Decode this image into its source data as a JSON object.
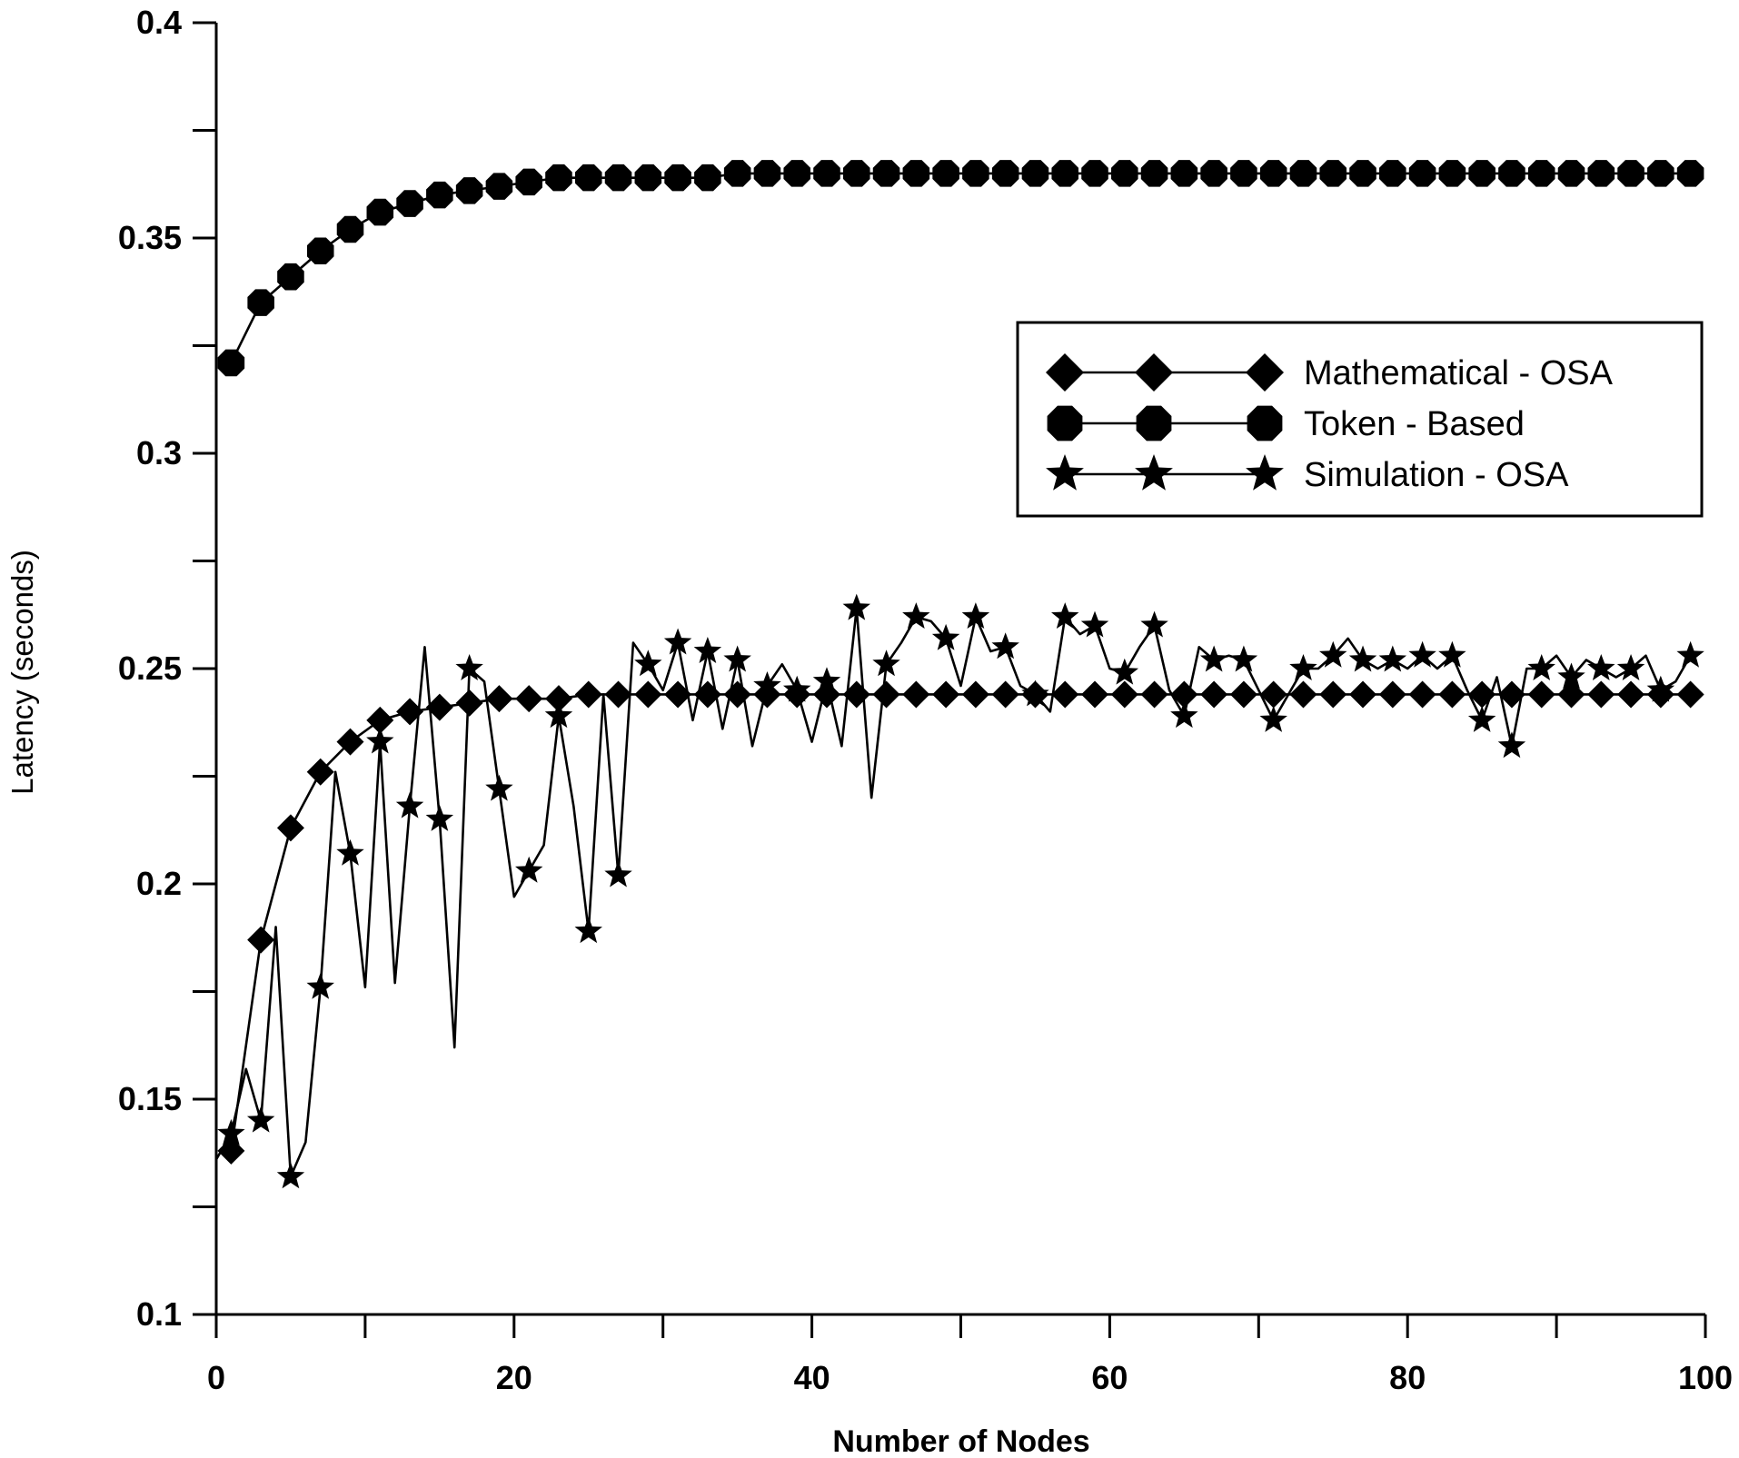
{
  "chart_data": {
    "type": "line",
    "title": "",
    "xlabel": "Number of Nodes",
    "ylabel": "Latency (seconds)",
    "xlim": [
      0,
      100
    ],
    "ylim": [
      0.1,
      0.4
    ],
    "x_ticks": [
      0,
      20,
      40,
      60,
      80,
      100
    ],
    "x_tick_labels": [
      "0",
      "20",
      "40",
      "60",
      "80",
      "100"
    ],
    "y_ticks": [
      0.1,
      0.15,
      0.2,
      0.25,
      0.3,
      0.35,
      0.4
    ],
    "y_tick_labels": [
      "0.1",
      "0.15",
      "0.2",
      "0.25",
      "0.3",
      "0.35",
      "0.4"
    ],
    "legend_position": "upper-right",
    "series": [
      {
        "name": "Mathematical - OSA",
        "marker": "diamond",
        "x": [
          1,
          3,
          5,
          7,
          9,
          11,
          13,
          15,
          17,
          19,
          21,
          23,
          25,
          27,
          29,
          31,
          33,
          35,
          37,
          39,
          41,
          43,
          45,
          47,
          49,
          51,
          53,
          55,
          57,
          59,
          61,
          63,
          65,
          67,
          69,
          71,
          73,
          75,
          77,
          79,
          81,
          83,
          85,
          87,
          89,
          91,
          93,
          95,
          97,
          99
        ],
        "y": [
          0.138,
          0.187,
          0.213,
          0.226,
          0.233,
          0.238,
          0.24,
          0.241,
          0.242,
          0.243,
          0.243,
          0.243,
          0.244,
          0.244,
          0.244,
          0.244,
          0.244,
          0.244,
          0.244,
          0.244,
          0.244,
          0.244,
          0.244,
          0.244,
          0.244,
          0.244,
          0.244,
          0.244,
          0.244,
          0.244,
          0.244,
          0.244,
          0.244,
          0.244,
          0.244,
          0.244,
          0.244,
          0.244,
          0.244,
          0.244,
          0.244,
          0.244,
          0.244,
          0.244,
          0.244,
          0.244,
          0.244,
          0.244,
          0.244,
          0.244
        ]
      },
      {
        "name": "Token - Based",
        "marker": "octagon",
        "x": [
          1,
          3,
          5,
          7,
          9,
          11,
          13,
          15,
          17,
          19,
          21,
          23,
          25,
          27,
          29,
          31,
          33,
          35,
          37,
          39,
          41,
          43,
          45,
          47,
          49,
          51,
          53,
          55,
          57,
          59,
          61,
          63,
          65,
          67,
          69,
          71,
          73,
          75,
          77,
          79,
          81,
          83,
          85,
          87,
          89,
          91,
          93,
          95,
          97,
          99
        ],
        "y": [
          0.321,
          0.335,
          0.341,
          0.347,
          0.352,
          0.356,
          0.358,
          0.36,
          0.361,
          0.362,
          0.363,
          0.364,
          0.364,
          0.364,
          0.364,
          0.364,
          0.364,
          0.365,
          0.365,
          0.365,
          0.365,
          0.365,
          0.365,
          0.365,
          0.365,
          0.365,
          0.365,
          0.365,
          0.365,
          0.365,
          0.365,
          0.365,
          0.365,
          0.365,
          0.365,
          0.365,
          0.365,
          0.365,
          0.365,
          0.365,
          0.365,
          0.365,
          0.365,
          0.365,
          0.365,
          0.365,
          0.365,
          0.365,
          0.365,
          0.365
        ]
      },
      {
        "name": "Simulation - OSA",
        "marker": "star",
        "x": [
          0,
          1,
          2,
          3,
          4,
          5,
          6,
          7,
          8,
          9,
          10,
          11,
          12,
          13,
          14,
          15,
          16,
          17,
          18,
          19,
          20,
          21,
          22,
          23,
          24,
          25,
          26,
          27,
          28,
          29,
          30,
          31,
          32,
          33,
          34,
          35,
          36,
          37,
          38,
          39,
          40,
          41,
          42,
          43,
          44,
          45,
          46,
          47,
          48,
          49,
          50,
          51,
          52,
          53,
          54,
          55,
          56,
          57,
          58,
          59,
          60,
          61,
          62,
          63,
          64,
          65,
          66,
          67,
          68,
          69,
          70,
          71,
          72,
          73,
          74,
          75,
          76,
          77,
          78,
          79,
          80,
          81,
          82,
          83,
          84,
          85,
          86,
          87,
          88,
          89,
          90,
          91,
          92,
          93,
          94,
          95,
          96,
          97,
          98,
          99
        ],
        "y": [
          0.136,
          0.142,
          0.157,
          0.145,
          0.19,
          0.132,
          0.14,
          0.176,
          0.226,
          0.207,
          0.176,
          0.233,
          0.177,
          0.218,
          0.255,
          0.215,
          0.162,
          0.25,
          0.247,
          0.222,
          0.197,
          0.203,
          0.209,
          0.239,
          0.218,
          0.189,
          0.244,
          0.202,
          0.256,
          0.251,
          0.245,
          0.256,
          0.238,
          0.254,
          0.236,
          0.252,
          0.232,
          0.246,
          0.251,
          0.245,
          0.233,
          0.247,
          0.232,
          0.264,
          0.22,
          0.251,
          0.256,
          0.262,
          0.261,
          0.257,
          0.246,
          0.262,
          0.254,
          0.255,
          0.246,
          0.244,
          0.24,
          0.262,
          0.258,
          0.26,
          0.25,
          0.249,
          0.255,
          0.26,
          0.245,
          0.239,
          0.255,
          0.252,
          0.253,
          0.252,
          0.245,
          0.238,
          0.244,
          0.25,
          0.25,
          0.253,
          0.257,
          0.252,
          0.25,
          0.252,
          0.25,
          0.253,
          0.25,
          0.253,
          0.245,
          0.238,
          0.248,
          0.232,
          0.25,
          0.25,
          0.253,
          0.248,
          0.252,
          0.25,
          0.248,
          0.25,
          0.253,
          0.245,
          0.247,
          0.253
        ]
      }
    ]
  }
}
